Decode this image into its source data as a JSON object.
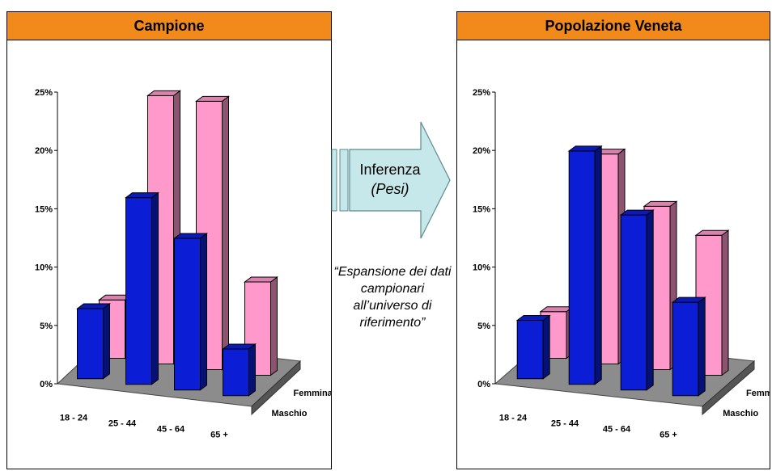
{
  "arrow": {
    "label_line1": "Inferenza",
    "label_line2": "(Pesi)",
    "caption": "“Espansione dei dati campionari all’universo di riferimento”",
    "color": "#c6e8ea"
  },
  "chart_data": [
    {
      "type": "bar",
      "title": "Campione",
      "categories": [
        "18 - 24",
        "25 - 44",
        "45 - 64",
        "65 +"
      ],
      "series": [
        {
          "name": "Maschio",
          "color": "#0b1ed6",
          "values": [
            6,
            16,
            13,
            4
          ]
        },
        {
          "name": "Femmina",
          "color": "#ff99cc",
          "values": [
            5,
            23,
            23,
            8
          ]
        }
      ],
      "ylim": [
        0,
        25
      ],
      "yticks": [
        "0%",
        "5%",
        "10%",
        "15%",
        "20%",
        "25%"
      ],
      "grid": false
    },
    {
      "type": "bar",
      "title": "Popolazione Veneta",
      "categories": [
        "18 - 24",
        "25 - 44",
        "45 - 64",
        "65 +"
      ],
      "series": [
        {
          "name": "Maschio",
          "color": "#0b1ed6",
          "values": [
            5,
            20,
            15,
            8
          ]
        },
        {
          "name": "Femmina",
          "color": "#ff99cc",
          "values": [
            4,
            18,
            14,
            12
          ]
        }
      ],
      "ylim": [
        0,
        25
      ],
      "yticks": [
        "0%",
        "5%",
        "10%",
        "15%",
        "20%",
        "25%"
      ],
      "grid": false
    }
  ]
}
